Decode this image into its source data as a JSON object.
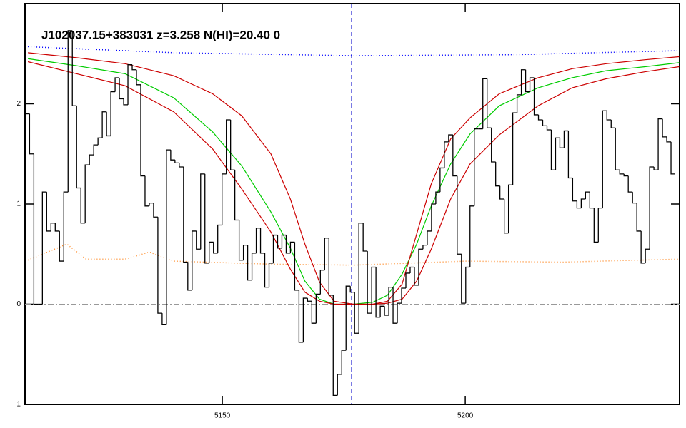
{
  "chart_data": {
    "type": "spectrum",
    "title": "J102037.15+383031 z=3.258 N(HI)=20.40 0",
    "xlim": [
      5109.4,
      5244.1
    ],
    "ylim": [
      -1,
      3
    ],
    "xticks": [
      5150,
      5200
    ],
    "yticks": [
      -1,
      0,
      1,
      2
    ],
    "vline": 5176.6,
    "hline": 0,
    "flux": {
      "color": "#000000",
      "x": [
        5109.9,
        5110.78,
        5111.66,
        5112.54,
        5113.42,
        5114.3,
        5115.18,
        5116.06,
        5116.94,
        5117.82,
        5118.7,
        5119.58,
        5120.46,
        5121.34,
        5122.22,
        5123.1,
        5123.98,
        5124.86,
        5125.74,
        5126.62,
        5127.5,
        5128.38,
        5129.26,
        5130.14,
        5131.02,
        5131.9,
        5132.78,
        5133.66,
        5134.54,
        5135.42,
        5136.3,
        5137.18,
        5138.06,
        5138.94,
        5139.82,
        5140.7,
        5141.58,
        5142.46,
        5143.34,
        5144.22,
        5145.1,
        5145.98,
        5146.86,
        5147.74,
        5148.62,
        5149.5,
        5150.38,
        5151.26,
        5152.14,
        5153.02,
        5153.9,
        5154.78,
        5155.66,
        5156.54,
        5157.42,
        5158.3,
        5159.18,
        5160.06,
        5160.94,
        5161.82,
        5162.7,
        5163.58,
        5164.46,
        5165.34,
        5166.22,
        5167.1,
        5167.98,
        5168.86,
        5169.74,
        5170.62,
        5171.5,
        5172.38,
        5173.26,
        5174.14,
        5175.02,
        5175.9,
        5176.78,
        5177.66,
        5178.54,
        5179.42,
        5180.3,
        5181.18,
        5182.06,
        5182.94,
        5183.82,
        5184.7,
        5185.58,
        5186.46,
        5187.34,
        5188.22,
        5189.1,
        5189.98,
        5190.86,
        5191.74,
        5192.62,
        5193.5,
        5194.38,
        5195.26,
        5196.14,
        5197.02,
        5197.9,
        5198.78,
        5199.66,
        5200.54,
        5201.42,
        5202.3,
        5203.18,
        5204.06,
        5204.94,
        5205.82,
        5206.7,
        5207.58,
        5208.46,
        5209.34,
        5210.22,
        5211.1,
        5211.98,
        5212.86,
        5213.74,
        5214.62,
        5215.5,
        5216.38,
        5217.26,
        5218.14,
        5219.02,
        5219.9,
        5220.78,
        5221.66,
        5222.54,
        5223.42,
        5224.3,
        5225.18,
        5226.06,
        5226.94,
        5227.82,
        5228.7,
        5229.58,
        5230.46,
        5231.34,
        5232.22,
        5233.1,
        5233.98,
        5234.86,
        5235.74,
        5236.62,
        5237.5,
        5238.38,
        5239.26,
        5240.14,
        5241.02,
        5241.9,
        5242.78
      ],
      "values": [
        1.9,
        1.5,
        0,
        0,
        1.12,
        0.73,
        0.81,
        0.73,
        0.43,
        1.12,
        2.73,
        1.98,
        1.16,
        0.81,
        1.39,
        1.49,
        1.59,
        1.66,
        1.92,
        1.68,
        2.12,
        2.26,
        2.05,
        1.99,
        2.39,
        2.34,
        2.19,
        1.28,
        0.98,
        1.01,
        0.87,
        -0.09,
        -0.2,
        1.54,
        1.44,
        1.41,
        1.37,
        0.42,
        0.14,
        0.73,
        0.55,
        1.3,
        0.41,
        0.62,
        0.51,
        0.79,
        1.3,
        1.84,
        1.34,
        0.84,
        0.44,
        0.59,
        0.24,
        0.51,
        0.76,
        0.51,
        0.17,
        0.41,
        0.69,
        0.56,
        0.69,
        0.51,
        0.62,
        0.14,
        -0.38,
        0.06,
        0.03,
        -0.19,
        0.1,
        0.34,
        0.66,
        0.09,
        -0.91,
        -0.7,
        -0.46,
        0.18,
        0.12,
        -0.29,
        0.81,
        0.53,
        -0.09,
        0.37,
        -0.13,
        -0.02,
        -0.11,
        0.17,
        -0.19,
        0.01,
        0.16,
        0.31,
        0.37,
        0.19,
        0.55,
        0.59,
        0.73,
        1.0,
        1.12,
        1.36,
        1.62,
        1.69,
        1.28,
        0.5,
        0.01,
        0.37,
        0.98,
        1.75,
        1.75,
        2.25,
        1.76,
        1.42,
        1.18,
        1.05,
        0.71,
        1.19,
        1.91,
        2.09,
        2.34,
        2.12,
        2.26,
        1.89,
        1.84,
        1.78,
        1.74,
        1.34,
        1.66,
        1.56,
        1.73,
        1.26,
        1.03,
        0.96,
        1.05,
        1.12,
        0.96,
        0.62,
        0.96,
        1.93,
        1.84,
        1.76,
        1.34,
        1.3,
        1.28,
        1.12,
        1.01,
        0.73,
        0.41,
        0.55,
        1.37,
        1.34,
        1.85,
        1.67,
        1.62,
        1.3
      ]
    },
    "series": [
      {
        "color": "#0000ff",
        "dash": "1 3",
        "x": [
          5110,
          5140,
          5177,
          5210,
          5244
        ],
        "values": [
          2.57,
          2.51,
          2.48,
          2.49,
          2.53
        ]
      },
      {
        "color": "#ff8c2a",
        "dash": "1 3",
        "x": [
          5110,
          5118,
          5122,
          5130,
          5135,
          5140,
          5160,
          5177,
          5200,
          5220,
          5244
        ],
        "values": [
          0.44,
          0.6,
          0.45,
          0.45,
          0.52,
          0.43,
          0.4,
          0.39,
          0.43,
          0.42,
          0.45
        ]
      },
      {
        "color": "#00cc00",
        "x": [
          5110,
          5120,
          5130,
          5140,
          5148,
          5154,
          5160,
          5164,
          5167,
          5170,
          5173,
          5177,
          5181,
          5184,
          5187,
          5190,
          5193,
          5197,
          5201,
          5207,
          5215,
          5222,
          5229,
          5237,
          5244
        ],
        "values": [
          2.45,
          2.38,
          2.3,
          2.06,
          1.72,
          1.38,
          0.92,
          0.56,
          0.23,
          0.05,
          0,
          0,
          0.02,
          0.09,
          0.3,
          0.6,
          0.98,
          1.4,
          1.7,
          1.98,
          2.16,
          2.26,
          2.33,
          2.37,
          2.41
        ]
      },
      {
        "color": "#cc0000",
        "x": [
          5110,
          5120,
          5130,
          5140,
          5148,
          5154,
          5160,
          5164,
          5167,
          5170,
          5173,
          5177,
          5181,
          5184,
          5187,
          5190,
          5193,
          5197,
          5201,
          5207,
          5215,
          5222,
          5229,
          5237,
          5244
        ],
        "values": [
          2.51,
          2.46,
          2.4,
          2.28,
          2.1,
          1.88,
          1.5,
          1.05,
          0.6,
          0.22,
          0.03,
          0,
          0,
          0.03,
          0.2,
          0.7,
          1.2,
          1.65,
          1.86,
          2.1,
          2.26,
          2.35,
          2.4,
          2.44,
          2.47
        ]
      },
      {
        "color": "#cc0000",
        "x": [
          5110,
          5120,
          5130,
          5140,
          5148,
          5154,
          5160,
          5164,
          5167,
          5170,
          5173,
          5177,
          5181,
          5184,
          5187,
          5190,
          5193,
          5197,
          5201,
          5207,
          5215,
          5222,
          5229,
          5237,
          5244
        ],
        "values": [
          2.42,
          2.3,
          2.18,
          1.92,
          1.55,
          1.15,
          0.72,
          0.35,
          0.12,
          0.03,
          0,
          0,
          0,
          0.01,
          0.05,
          0.23,
          0.55,
          1.05,
          1.4,
          1.69,
          1.98,
          2.16,
          2.25,
          2.32,
          2.37
        ]
      }
    ]
  }
}
